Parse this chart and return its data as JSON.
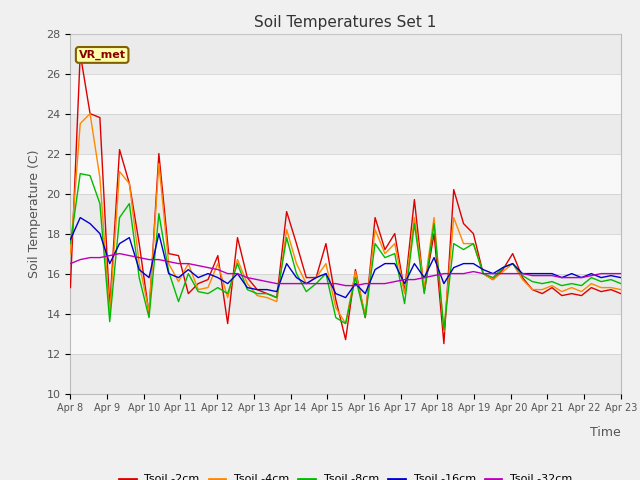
{
  "title": "Soil Temperatures Set 1",
  "ylabel": "Soil Temperature (C)",
  "xlabel": "Time",
  "ylim": [
    10,
    28
  ],
  "fig_bg": "#f0f0f0",
  "plot_bg": "#ffffff",
  "band_colors": [
    "#ebebeb",
    "#f8f8f8"
  ],
  "annotation_text": "VR_met",
  "annotation_bg": "#ffffaa",
  "annotation_border": "#806000",
  "annotation_text_color": "#880000",
  "xtick_labels": [
    "Apr 8",
    "Apr 9",
    "Apr 10",
    "Apr 11",
    "Apr 12",
    "Apr 13",
    "Apr 14",
    "Apr 15",
    "Apr 16",
    "Apr 17",
    "Apr 18",
    "Apr 19",
    "Apr 20",
    "Apr 21",
    "Apr 22",
    "Apr 23"
  ],
  "series_order": [
    "Tsoil -2cm",
    "Tsoil -4cm",
    "Tsoil -8cm",
    "Tsoil -16cm",
    "Tsoil -32cm"
  ],
  "series_colors": {
    "Tsoil -2cm": "#dd0000",
    "Tsoil -4cm": "#ff8800",
    "Tsoil -8cm": "#00bb00",
    "Tsoil -16cm": "#0000cc",
    "Tsoil -32cm": "#bb00bb"
  },
  "tsoil_2cm": [
    15.3,
    27.0,
    24.0,
    23.8,
    14.3,
    22.2,
    20.5,
    17.5,
    14.0,
    22.0,
    17.0,
    16.9,
    15.0,
    15.5,
    15.7,
    16.9,
    13.5,
    17.8,
    15.8,
    15.2,
    15.0,
    14.8,
    19.1,
    17.5,
    15.8,
    15.8,
    17.5,
    14.7,
    12.7,
    16.2,
    13.8,
    18.8,
    17.2,
    18.0,
    15.1,
    19.7,
    15.1,
    18.0,
    12.5,
    20.2,
    18.5,
    18.0,
    16.0,
    15.7,
    16.2,
    17.0,
    15.8,
    15.2,
    15.0,
    15.3,
    14.9,
    15.0,
    14.9,
    15.3,
    15.1,
    15.2,
    15.0
  ],
  "tsoil_4cm": [
    17.0,
    23.5,
    24.0,
    20.8,
    14.0,
    21.1,
    20.5,
    16.5,
    14.1,
    21.5,
    16.5,
    15.6,
    16.5,
    15.2,
    15.3,
    16.5,
    14.8,
    16.7,
    15.5,
    14.9,
    14.8,
    14.6,
    18.2,
    16.5,
    15.5,
    15.8,
    16.5,
    14.3,
    13.5,
    16.1,
    13.9,
    18.2,
    17.0,
    17.5,
    15.0,
    18.8,
    15.3,
    18.8,
    13.1,
    18.8,
    17.5,
    17.5,
    16.0,
    15.7,
    16.1,
    16.5,
    15.7,
    15.2,
    15.2,
    15.4,
    15.1,
    15.3,
    15.1,
    15.5,
    15.3,
    15.3,
    15.2
  ],
  "tsoil_8cm": [
    17.5,
    21.0,
    20.9,
    19.5,
    13.6,
    18.8,
    19.5,
    15.8,
    13.8,
    19.0,
    16.1,
    14.6,
    16.0,
    15.1,
    15.0,
    15.3,
    15.0,
    16.5,
    15.2,
    15.0,
    15.0,
    14.8,
    17.8,
    16.0,
    15.1,
    15.5,
    16.0,
    13.8,
    13.5,
    15.8,
    13.8,
    17.5,
    16.8,
    17.0,
    14.5,
    18.5,
    15.0,
    18.5,
    13.2,
    17.5,
    17.2,
    17.5,
    16.0,
    15.8,
    16.3,
    16.5,
    15.9,
    15.6,
    15.5,
    15.6,
    15.4,
    15.5,
    15.4,
    15.8,
    15.6,
    15.7,
    15.5
  ],
  "tsoil_16cm": [
    17.7,
    18.8,
    18.5,
    18.0,
    16.5,
    17.5,
    17.8,
    16.2,
    15.8,
    18.0,
    16.0,
    15.8,
    16.2,
    15.8,
    16.0,
    15.8,
    15.5,
    16.0,
    15.3,
    15.2,
    15.2,
    15.1,
    16.5,
    15.8,
    15.5,
    15.8,
    16.0,
    15.0,
    14.8,
    15.5,
    15.0,
    16.2,
    16.5,
    16.5,
    15.5,
    16.5,
    15.8,
    16.8,
    15.5,
    16.3,
    16.5,
    16.5,
    16.2,
    16.0,
    16.3,
    16.5,
    16.0,
    16.0,
    16.0,
    16.0,
    15.8,
    16.0,
    15.8,
    16.0,
    15.8,
    15.9,
    15.8
  ],
  "tsoil_32cm": [
    16.5,
    16.7,
    16.8,
    16.8,
    16.9,
    17.0,
    16.9,
    16.8,
    16.7,
    16.7,
    16.6,
    16.5,
    16.5,
    16.4,
    16.3,
    16.2,
    16.0,
    16.0,
    15.8,
    15.7,
    15.6,
    15.5,
    15.5,
    15.5,
    15.5,
    15.5,
    15.5,
    15.5,
    15.4,
    15.4,
    15.5,
    15.5,
    15.5,
    15.6,
    15.7,
    15.7,
    15.8,
    15.9,
    16.0,
    16.0,
    16.0,
    16.1,
    16.0,
    16.0,
    16.0,
    16.0,
    16.0,
    15.9,
    15.9,
    15.9,
    15.8,
    15.8,
    15.8,
    15.9,
    16.0,
    16.0,
    16.0
  ]
}
